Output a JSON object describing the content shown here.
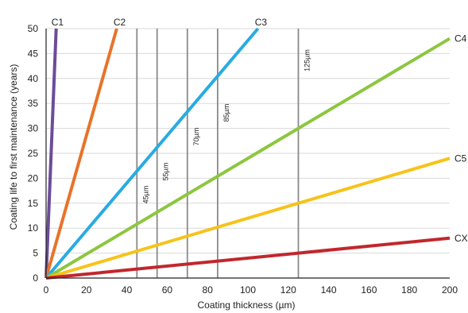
{
  "chart_data": {
    "type": "line",
    "title": "",
    "xlabel": "Coating thickness (µm)",
    "ylabel": "Coating life to first maintenance (years)",
    "xlim": [
      0,
      200
    ],
    "ylim": [
      0,
      50
    ],
    "x_ticks": [
      "0",
      "20",
      "40",
      "60",
      "80",
      "100",
      "120",
      "140",
      "160",
      "180",
      "200"
    ],
    "y_ticks": [
      "0",
      "5",
      "10",
      "15",
      "20",
      "25",
      "30",
      "35",
      "40",
      "45",
      "50"
    ],
    "grid": "horizontal",
    "series": [
      {
        "name": "C1",
        "color": "#6b4c9a",
        "x": [
          0,
          5
        ],
        "y": [
          0,
          50
        ]
      },
      {
        "name": "C2",
        "color": "#e8732a",
        "x": [
          0,
          35
        ],
        "y": [
          0,
          50
        ]
      },
      {
        "name": "C3",
        "color": "#29abe2",
        "x": [
          0,
          105
        ],
        "y": [
          0,
          50
        ]
      },
      {
        "name": "C4",
        "color": "#8dc63f",
        "x": [
          0,
          200
        ],
        "y": [
          0,
          48
        ]
      },
      {
        "name": "C5",
        "color": "#f7c31a",
        "x": [
          0,
          200
        ],
        "y": [
          0,
          24
        ]
      },
      {
        "name": "CX",
        "color": "#c1272d",
        "x": [
          0,
          200
        ],
        "y": [
          0,
          8
        ]
      }
    ],
    "reference_lines": [
      {
        "x": 45,
        "label": "45µm"
      },
      {
        "x": 55,
        "label": "55µm"
      },
      {
        "x": 70,
        "label": "70µm"
      },
      {
        "x": 85,
        "label": "85µm"
      },
      {
        "x": 125,
        "label": "125µm"
      }
    ]
  }
}
